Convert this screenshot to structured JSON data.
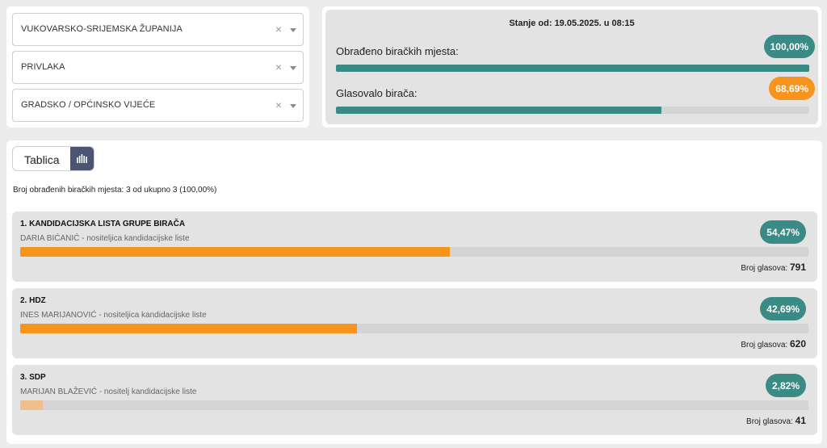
{
  "filters": {
    "county": "VUKOVARSKO-SRIJEMSKA ŽUPANIJA",
    "municipality": "PRIVLAKA",
    "election": "GRADSKO / OPĆINSKO VIJEĆE",
    "clear_symbol": "×"
  },
  "status": {
    "updated": "Stanje od: 19.05.2025. u 08:15",
    "processed_label": "Obrađeno biračkih mjesta:",
    "processed_value": "100,00%",
    "processed_fraction": 1.0,
    "turnout_label": "Glasovalo birača:",
    "turnout_value": "68,69%",
    "turnout_fraction": 0.6869
  },
  "results": {
    "view_toggle_label": "Tablica",
    "chart_view_icon": "bar-chart-icon",
    "summary": "Broj obrađenih biračkih mjesta: 3 od ukupno 3 (100,00%)",
    "votes_label": "Broj glasova:",
    "lists": [
      {
        "title": "1. KANDIDACIJSKA LISTA GRUPE BIRAČA",
        "leader": "DARIA BIĆANIĆ - nositeljica kandidacijske liste",
        "percent": "54,47%",
        "fraction": 0.5447,
        "votes": "791"
      },
      {
        "title": "2. HDZ",
        "leader": "INES MARIJANOVIĆ - nositeljica kandidacijske liste",
        "percent": "42,69%",
        "fraction": 0.4269,
        "votes": "620"
      },
      {
        "title": "3. SDP",
        "leader": "MARIJAN BLAŽEVIĆ - nositelj kandidacijske liste",
        "percent": "2,82%",
        "fraction": 0.0282,
        "votes": "41"
      }
    ]
  },
  "colors": {
    "teal": "#3a8a85",
    "orange": "#f7941d",
    "light_orange": "#efbf8b",
    "toggle_active": "#4b5572"
  }
}
